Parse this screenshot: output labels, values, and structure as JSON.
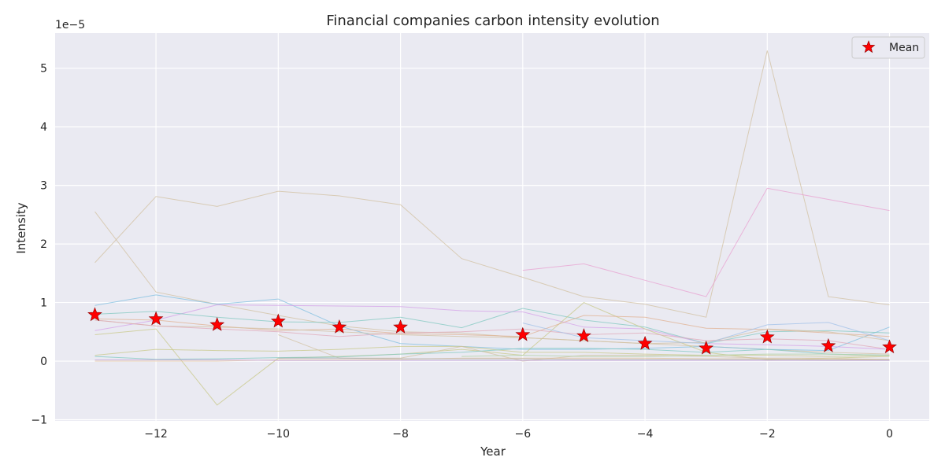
{
  "chart_data": {
    "type": "line",
    "title": "Financial companies carbon intensity evolution",
    "xlabel": "Year",
    "ylabel": "Intensity",
    "y_offset_label": "1e−5",
    "y_scale_exponent": -5,
    "xlim": [
      -13.65,
      0.65
    ],
    "ylim": [
      -1.02,
      5.6
    ],
    "x_ticks": [
      -12,
      -10,
      -8,
      -6,
      -4,
      -2,
      0
    ],
    "x_tick_labels": [
      "−12",
      "−10",
      "−8",
      "−6",
      "−4",
      "−2",
      "0"
    ],
    "y_ticks": [
      -1,
      0,
      1,
      2,
      3,
      4,
      5
    ],
    "y_tick_labels": [
      "−1",
      "0",
      "1",
      "2",
      "3",
      "4",
      "5"
    ],
    "grid": true,
    "background": "#eaeaf2",
    "legend": {
      "position": "top-right",
      "entries": [
        {
          "label": "Mean",
          "marker": "star",
          "color": "#ff0000"
        }
      ]
    },
    "series": [
      {
        "color": "#d1c0a0",
        "x": [
          -13,
          -12,
          -11,
          -10,
          -9,
          -8,
          -7,
          -6,
          -5,
          -4,
          -3,
          -2,
          -1,
          0
        ],
        "values": [
          1.68,
          2.81,
          2.64,
          2.9,
          2.82,
          2.67,
          1.75,
          1.43,
          1.1,
          0.97,
          0.75,
          5.3,
          1.1,
          0.96
        ]
      },
      {
        "color": "#d1c0a0",
        "x": [
          -13,
          -12,
          -11,
          -10,
          -9,
          -8,
          -7,
          -6,
          -5,
          -4,
          -3,
          -2,
          -1,
          0
        ],
        "values": [
          2.55,
          1.18,
          0.97,
          0.78,
          0.6,
          0.5,
          0.48,
          0.4,
          0.35,
          0.3,
          0.25,
          0.2,
          0.15,
          0.12
        ]
      },
      {
        "color": "#e8a0d0",
        "x": [
          -6,
          -5,
          -4,
          -3,
          -2,
          -1,
          0
        ],
        "values": [
          1.55,
          1.66,
          1.38,
          1.1,
          2.95,
          2.76,
          2.57
        ]
      },
      {
        "color": "#7fbfe0",
        "x": [
          -13,
          -12,
          -11,
          -10,
          -9,
          -8,
          -7,
          -6,
          -5,
          -4,
          -3,
          -2,
          -1,
          0
        ],
        "values": [
          0.95,
          1.13,
          0.97,
          1.06,
          0.6,
          0.3,
          0.25,
          0.2,
          0.2,
          0.22,
          0.25,
          0.2,
          0.18,
          0.58
        ]
      },
      {
        "color": "#d4a0e8",
        "x": [
          -13,
          -12,
          -11,
          -10,
          -9,
          -8,
          -7,
          -6,
          -5,
          -4,
          -3,
          -2,
          -1,
          0
        ],
        "values": [
          0.52,
          0.7,
          0.96,
          0.95,
          0.94,
          0.93,
          0.86,
          0.84,
          0.58,
          0.55,
          0.3,
          0.28,
          0.25,
          0.2
        ]
      },
      {
        "color": "#80c8c0",
        "x": [
          -13,
          -12,
          -11,
          -10,
          -9,
          -8,
          -7,
          -6,
          -5,
          -4,
          -3,
          -2,
          -1,
          0
        ],
        "values": [
          0.8,
          0.85,
          0.75,
          0.67,
          0.66,
          0.75,
          0.57,
          0.9,
          0.7,
          0.58,
          0.3,
          0.5,
          0.52,
          0.48
        ]
      },
      {
        "color": "#c8c888",
        "x": [
          -13,
          -12,
          -11,
          -10,
          -9,
          -8,
          -7,
          -6,
          -5,
          -4,
          -3,
          -2,
          -1,
          0
        ],
        "values": [
          0.45,
          0.55,
          -0.75,
          0.05,
          0.08,
          0.12,
          0.2,
          0.1,
          1.0,
          0.55,
          0.15,
          0.02,
          0.05,
          0.08
        ]
      },
      {
        "color": "#e0b090",
        "x": [
          -13,
          -12,
          -11,
          -10,
          -9,
          -8,
          -7,
          -6,
          -5,
          -4,
          -3,
          -2,
          -1,
          0
        ],
        "values": [
          0.72,
          0.7,
          0.6,
          0.52,
          0.55,
          0.47,
          0.45,
          0.42,
          0.78,
          0.75,
          0.56,
          0.54,
          0.48,
          0.42
        ]
      },
      {
        "color": "#d1c0a0",
        "x": [
          -13,
          -12,
          -11,
          -10,
          -9,
          -8,
          -7,
          -6,
          -5,
          -4,
          -3,
          -2,
          -1,
          0
        ],
        "values": [
          0.7,
          0.6,
          0.58,
          0.55,
          0.5,
          0.45,
          0.42,
          0.4,
          0.35,
          0.3,
          0.32,
          0.55,
          0.5,
          0.35
        ]
      },
      {
        "color": "#e0a8b8",
        "x": [
          -13,
          -12,
          -11,
          -10,
          -9,
          -8,
          -7,
          -6,
          -5,
          -4,
          -3,
          -2,
          -1,
          0
        ],
        "values": [
          0.7,
          0.6,
          0.55,
          0.5,
          0.42,
          0.48,
          0.5,
          0.55,
          0.45,
          0.48,
          0.35,
          0.38,
          0.35,
          0.2
        ]
      },
      {
        "color": "#c8c888",
        "x": [
          -13,
          -12,
          -11,
          -10,
          -9,
          -8,
          -7,
          -6,
          -5,
          -4,
          -3,
          -2,
          -1,
          0
        ],
        "values": [
          0.1,
          0.2,
          0.18,
          0.17,
          0.2,
          0.25,
          0.25,
          0.15,
          0.15,
          0.12,
          0.1,
          0.1,
          0.08,
          0.1
        ]
      },
      {
        "color": "#d1c0a0",
        "x": [
          -10,
          -9,
          -8,
          -7,
          -6,
          -5,
          -4,
          -3,
          -2,
          -1,
          0
        ],
        "values": [
          0.45,
          0.05,
          0.05,
          0.25,
          0.0,
          0.1,
          0.1,
          0.08,
          0.05,
          0.05,
          0.02
        ]
      },
      {
        "color": "#a0c0e8",
        "x": [
          -6,
          -5,
          -4,
          -3,
          -2,
          -1,
          0
        ],
        "values": [
          0.65,
          0.4,
          0.35,
          0.3,
          0.62,
          0.66,
          0.35
        ]
      },
      {
        "color": "#80c8c0",
        "x": [
          -13,
          -12,
          -11,
          -10,
          -9,
          -8,
          -7,
          -6,
          -5,
          -4,
          -3,
          -2,
          -1,
          0
        ],
        "values": [
          0.08,
          0.03,
          0.04,
          0.06,
          0.07,
          0.12,
          0.15,
          0.22,
          0.22,
          0.2,
          0.15,
          0.2,
          0.12,
          0.1
        ]
      },
      {
        "color": "#e8c8a0",
        "x": [
          -13,
          -12,
          -11,
          -10,
          -9,
          -8,
          -7,
          -6,
          -5,
          -4,
          -3,
          -2,
          -1,
          0
        ],
        "values": [
          0.0,
          0.0,
          0.0,
          0.02,
          0.02,
          0.03,
          0.05,
          0.05,
          0.05,
          0.05,
          0.04,
          0.04,
          0.03,
          0.03
        ]
      },
      {
        "color": "#c0a0d8",
        "x": [
          -13,
          -12,
          -11,
          -10,
          -9,
          -8,
          -7,
          -6,
          -5,
          -4,
          -3,
          -2,
          -1,
          0
        ],
        "values": [
          0.02,
          0.02,
          0.02,
          0.01,
          0.01,
          0.01,
          0.01,
          0.01,
          0.01,
          0.01,
          0.01,
          0.01,
          0.01,
          0.01
        ]
      },
      {
        "color": "#b0d0a0",
        "x": [
          -7,
          -6,
          -5,
          -4,
          -3,
          -2,
          -1,
          0
        ],
        "values": [
          0.08,
          0.1,
          0.08,
          0.08,
          0.1,
          0.12,
          0.12,
          0.1
        ]
      },
      {
        "color": "#a8a8a8",
        "x": [
          -10,
          -9,
          -8,
          -7,
          -6,
          -5,
          -4,
          -3,
          -2,
          -1,
          0
        ],
        "values": [
          0.05,
          0.05,
          0.04,
          0.04,
          0.04,
          0.03,
          0.03,
          0.03,
          0.03,
          0.02,
          0.02
        ]
      }
    ],
    "mean": {
      "name": "Mean",
      "color": "#ff0000",
      "x": [
        -13,
        -12,
        -11,
        -10,
        -9,
        -8,
        -6,
        -5,
        -4,
        -3,
        -2,
        -1,
        0
      ],
      "values": [
        0.79,
        0.72,
        0.62,
        0.68,
        0.58,
        0.58,
        0.45,
        0.43,
        0.3,
        0.22,
        0.41,
        0.26,
        0.24
      ]
    }
  }
}
